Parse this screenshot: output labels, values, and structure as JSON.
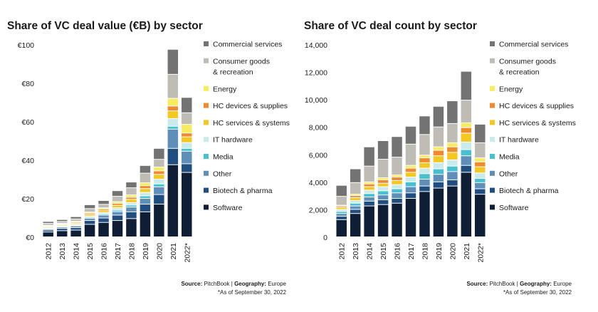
{
  "colors": {
    "Commercial services": "#737373",
    "Consumer goods & recreation": "#bfbcb6",
    "Energy": "#f7ec61",
    "HC devices & supplies": "#ee8a2f",
    "HC services & systems": "#f3c724",
    "IT hardware": "#cbeaec",
    "Media": "#48c0cf",
    "Other": "#5f8fb9",
    "Biotech & pharma": "#214e80",
    "Software": "#0f1d35"
  },
  "legend": [
    {
      "key": "Commercial services",
      "lines": [
        "Commercial services"
      ]
    },
    {
      "key": "Consumer goods & recreation",
      "lines": [
        "Consumer goods",
        "& recreation"
      ]
    },
    {
      "key": "Energy",
      "lines": [
        "Energy"
      ]
    },
    {
      "key": "HC devices & supplies",
      "lines": [
        "HC devices & supplies"
      ]
    },
    {
      "key": "HC services & systems",
      "lines": [
        "HC services & systems"
      ]
    },
    {
      "key": "IT hardware",
      "lines": [
        "IT hardware"
      ]
    },
    {
      "key": "Media",
      "lines": [
        "Media"
      ]
    },
    {
      "key": "Other",
      "lines": [
        "Other"
      ]
    },
    {
      "key": "Biotech & pharma",
      "lines": [
        "Biotech & pharma"
      ]
    },
    {
      "key": "Software",
      "lines": [
        "Software"
      ]
    }
  ],
  "chart_data": [
    {
      "type": "bar",
      "title": "Share of VC deal value (€B) by sector",
      "source_label": "Source:",
      "source_value": "PitchBook",
      "geo_label": "Geography:",
      "geo_value": "Europe",
      "separator": "|",
      "footnote": "*As of September 30, 2022",
      "categories": [
        "2012",
        "2013",
        "2014",
        "2015",
        "2016",
        "2017",
        "2018",
        "2019",
        "2020",
        "2021",
        "2022*"
      ],
      "ylim": [
        0,
        100
      ],
      "yticks": [
        0,
        20,
        40,
        60,
        80,
        100
      ],
      "ytick_labels": [
        "€0",
        "€20",
        "€40",
        "€60",
        "€80",
        "€100"
      ],
      "series": [
        {
          "name": "Software",
          "values": [
            2.5,
            3.2,
            3.5,
            6.5,
            7.5,
            8.5,
            9.5,
            13,
            17,
            37.5,
            33.5
          ]
        },
        {
          "name": "Biotech & pharma",
          "values": [
            1,
            1.2,
            1.3,
            2,
            2.3,
            2.8,
            3.5,
            4,
            5,
            8.5,
            4.5
          ]
        },
        {
          "name": "Other",
          "values": [
            0.6,
            0.7,
            0.9,
            1.2,
            1.5,
            1.8,
            2.5,
            3,
            4,
            10,
            6.5
          ]
        },
        {
          "name": "Media",
          "values": [
            0.3,
            0.3,
            0.4,
            0.5,
            0.6,
            0.8,
            1,
            1.3,
            1.5,
            1.5,
            1.5
          ]
        },
        {
          "name": "IT hardware",
          "values": [
            0.3,
            0.3,
            0.4,
            0.6,
            0.7,
            1.2,
            1.3,
            1.8,
            2.5,
            4,
            3
          ]
        },
        {
          "name": "HC services & systems",
          "values": [
            0.5,
            0.5,
            0.6,
            0.8,
            1,
            1.3,
            1.7,
            2,
            2.5,
            4,
            3
          ]
        },
        {
          "name": "HC devices & supplies",
          "values": [
            0.4,
            0.4,
            0.5,
            0.7,
            0.8,
            1,
            1.1,
            1.5,
            1.8,
            2.5,
            2
          ]
        },
        {
          "name": "Energy",
          "values": [
            0.4,
            0.4,
            0.5,
            0.6,
            0.7,
            0.9,
            1.2,
            1.5,
            2,
            4,
            4.5
          ]
        },
        {
          "name": "Consumer goods & recreation",
          "values": [
            1,
            1,
            1.2,
            1.8,
            1.8,
            2.8,
            3.7,
            5,
            4,
            12.5,
            6
          ]
        },
        {
          "name": "Commercial services",
          "values": [
            1,
            1,
            1.2,
            2,
            2,
            2.9,
            3,
            4,
            5.7,
            13,
            8
          ]
        }
      ]
    },
    {
      "type": "bar",
      "title": "Share of VC deal count by sector",
      "source_label": "Source:",
      "source_value": "PitchBook",
      "geo_label": "Geography:",
      "geo_value": "Europe",
      "separator": "|",
      "footnote": "*As of September 30, 2022",
      "categories": [
        "2012",
        "2013",
        "2014",
        "2015",
        "2016",
        "2017",
        "2018",
        "2019",
        "2020",
        "2021",
        "2022*"
      ],
      "ylim": [
        0,
        14000
      ],
      "yticks": [
        0,
        2000,
        4000,
        6000,
        8000,
        10000,
        12000,
        14000
      ],
      "ytick_labels": [
        "0",
        "2,000",
        "4,000",
        "6,000",
        "8,000",
        "10,000",
        "12,000",
        "14,000"
      ],
      "series": [
        {
          "name": "Software",
          "values": [
            1250,
            1700,
            2250,
            2350,
            2450,
            2800,
            3300,
            3550,
            3700,
            4700,
            3100
          ]
        },
        {
          "name": "Biotech & pharma",
          "values": [
            250,
            300,
            350,
            350,
            350,
            400,
            400,
            450,
            450,
            500,
            400
          ]
        },
        {
          "name": "Other",
          "values": [
            200,
            250,
            300,
            350,
            400,
            450,
            500,
            550,
            600,
            700,
            450
          ]
        },
        {
          "name": "Media",
          "values": [
            150,
            200,
            250,
            300,
            300,
            350,
            400,
            400,
            400,
            450,
            300
          ]
        },
        {
          "name": "IT hardware",
          "values": [
            150,
            200,
            250,
            300,
            300,
            350,
            400,
            450,
            450,
            550,
            400
          ]
        },
        {
          "name": "HC services & systems",
          "values": [
            150,
            200,
            250,
            250,
            300,
            350,
            400,
            500,
            550,
            650,
            450
          ]
        },
        {
          "name": "HC devices & supplies",
          "values": [
            100,
            150,
            200,
            250,
            250,
            300,
            350,
            400,
            400,
            400,
            350
          ]
        },
        {
          "name": "Energy",
          "values": [
            50,
            100,
            150,
            150,
            150,
            200,
            200,
            250,
            300,
            350,
            300
          ]
        },
        {
          "name": "Consumer goods & recreation",
          "values": [
            650,
            850,
            1150,
            1350,
            1300,
            1550,
            1500,
            1450,
            1400,
            1650,
            1100
          ]
        },
        {
          "name": "Commercial services",
          "values": [
            800,
            1000,
            1400,
            1350,
            1500,
            1300,
            1350,
            1500,
            1650,
            2100,
            1350
          ]
        }
      ]
    }
  ]
}
